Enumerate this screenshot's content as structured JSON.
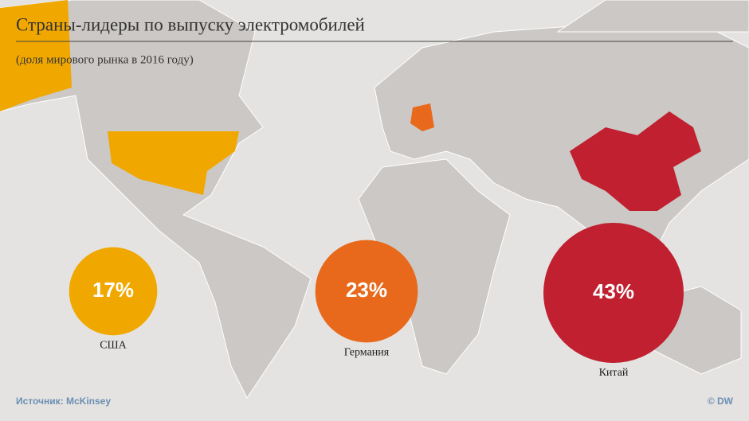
{
  "chart_data": {
    "type": "bubble",
    "title": "Страны-лидеры по выпуску электромобилей",
    "subtitle": "(доля мирового рынка в 2016 году)",
    "categories": [
      "США",
      "Германия",
      "Китай"
    ],
    "values": [
      17,
      23,
      43
    ],
    "value_labels": [
      "17%",
      "23%",
      "43%"
    ],
    "colors": [
      "#f0a800",
      "#e8691b",
      "#c0202f"
    ],
    "source": "Источник: McKinsey",
    "credit": "© DW"
  }
}
